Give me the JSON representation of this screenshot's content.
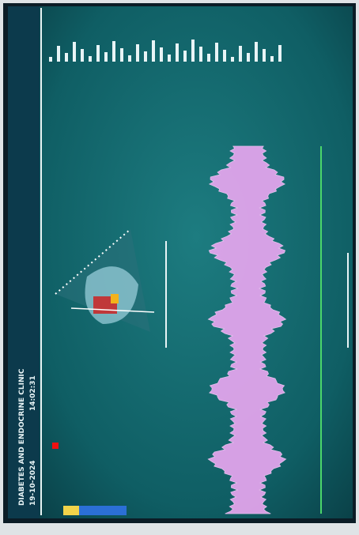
{
  "header": {
    "clinic": "DIABETES AND ENDOCRINE CLINIC",
    "date": "19-10-2024",
    "time": "14:02:31"
  }
}
